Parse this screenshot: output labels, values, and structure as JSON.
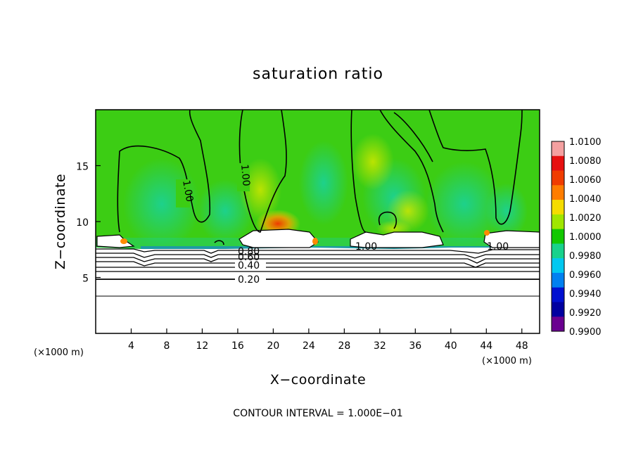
{
  "chart_data": {
    "type": "heatmap",
    "title": "saturation ratio",
    "xlabel": "X−coordinate",
    "ylabel": "Z−coordinate",
    "x_unit": "(×1000 m)",
    "y_unit": "(×1000 m)",
    "xlim": [
      0,
      50
    ],
    "ylim": [
      0,
      20
    ],
    "x_ticks": [
      "4",
      "8",
      "12",
      "16",
      "20",
      "24",
      "28",
      "32",
      "36",
      "40",
      "44",
      "48"
    ],
    "y_ticks": [
      "5",
      "10",
      "15"
    ],
    "contour_interval_label": "CONTOUR INTERVAL = 1.000E−01",
    "contour_labels": [
      "1.00",
      "1.00",
      "1.00",
      "1.00",
      "0.80",
      "0.60",
      "0.40",
      "0.20"
    ],
    "colorbar": {
      "min": 0.99,
      "max": 1.01,
      "labels": [
        "1.0100",
        "1.0080",
        "1.0060",
        "1.0040",
        "1.0020",
        "1.0000",
        "0.9980",
        "0.9960",
        "0.9940",
        "0.9920",
        "0.9900"
      ],
      "colors": [
        "#f4a0a0",
        "#e61010",
        "#f03c00",
        "#ff7d00",
        "#f5dc00",
        "#a0e600",
        "#12c800",
        "#18d28c",
        "#00c8f0",
        "#0080f0",
        "#0010d0",
        "#0000a0",
        "#6a0090"
      ]
    },
    "fields": {
      "background_value": 1.0,
      "field_color": "#3ccd14",
      "low_level_region_color": "#ffffff"
    }
  }
}
